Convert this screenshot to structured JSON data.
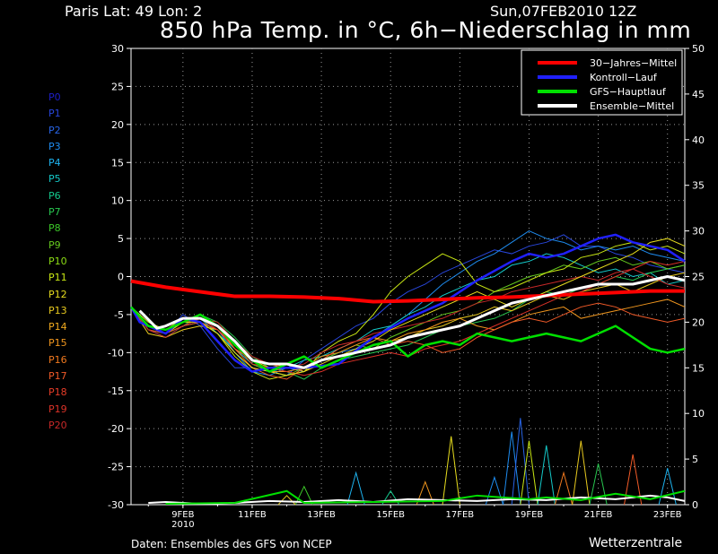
{
  "header": {
    "location": "Paris   Lat: 49  Lon: 2",
    "date": "Sun,07FEB2010 12Z",
    "title": "850 hPa Temp. in °C, 6h−Niederschlag in mm"
  },
  "footer": {
    "source": "Daten: Ensembles des GFS von NCEP",
    "brand": "Wetterzentrale"
  },
  "members": {
    "labels": [
      "P0",
      "P1",
      "P2",
      "P3",
      "P4",
      "P5",
      "P6",
      "P7",
      "P8",
      "P9",
      "P10",
      "P11",
      "P12",
      "P13",
      "P14",
      "P15",
      "P16",
      "P17",
      "P18",
      "P19",
      "P20"
    ],
    "colors": [
      "#1e1ec8",
      "#2846dc",
      "#2864e6",
      "#1e8cf0",
      "#1eb4f0",
      "#14c8c8",
      "#14c88c",
      "#28c850",
      "#3cc828",
      "#64c81e",
      "#8cdc14",
      "#c8e614",
      "#e6dc1e",
      "#e6c81e",
      "#f0aa1e",
      "#f0961e",
      "#f0781e",
      "#f05a28",
      "#e63c28",
      "#dc3228",
      "#c82828"
    ]
  },
  "chart_data": {
    "type": "line",
    "x_unit": "days since 07FEB2010 12Z",
    "x_range": [
      0,
      16
    ],
    "x_ticks": [
      {
        "x": 1.5,
        "label": "9FEB",
        "sub": "2010"
      },
      {
        "x": 3.5,
        "label": "11FEB"
      },
      {
        "x": 5.5,
        "label": "13FEB"
      },
      {
        "x": 7.5,
        "label": "15FEB"
      },
      {
        "x": 9.5,
        "label": "17FEB"
      },
      {
        "x": 11.5,
        "label": "19FEB"
      },
      {
        "x": 13.5,
        "label": "21FEB"
      },
      {
        "x": 15.5,
        "label": "23FEB"
      }
    ],
    "y_left": {
      "min": -30,
      "max": 30,
      "ticks": [
        -30,
        -25,
        -20,
        -15,
        -10,
        -5,
        0,
        5,
        10,
        15,
        20,
        25,
        30
      ],
      "unit": "°C"
    },
    "y_right": {
      "min": 0,
      "max": 50,
      "ticks": [
        0,
        5,
        10,
        15,
        20,
        25,
        30,
        35,
        40,
        45,
        50
      ],
      "unit": "mm"
    },
    "grid": true,
    "legend": {
      "position": "top-right",
      "entries": [
        {
          "label": "30−Jahres−Mittel",
          "color": "#ff0000"
        },
        {
          "label": "Kontroll−Lauf",
          "color": "#2020ff"
        },
        {
          "label": "GFS−Hauptlauf",
          "color": "#00e000"
        },
        {
          "label": "Ensemble−Mittel",
          "color": "#ffffff"
        }
      ]
    },
    "temperature_series": {
      "climate_mean": {
        "x": [
          0,
          1,
          2,
          3,
          4,
          5,
          6,
          7,
          8,
          9,
          10,
          11,
          12,
          13,
          14,
          15,
          16
        ],
        "y": [
          -0.6,
          -1.4,
          -2.0,
          -2.6,
          -2.6,
          -2.7,
          -2.9,
          -3.3,
          -3.2,
          -3.0,
          -2.8,
          -2.7,
          -2.5,
          -2.3,
          -2.1,
          -1.9,
          -1.9
        ]
      },
      "control_run": {
        "x": [
          0,
          0.25,
          1,
          1.5,
          2,
          2.5,
          3,
          3.5,
          4,
          5,
          6,
          7,
          8,
          9,
          9.5,
          10,
          11,
          11.5,
          12,
          12.5,
          13,
          13.5,
          14,
          14.5,
          15,
          15.5,
          16
        ],
        "y": [
          -4.0,
          -6.0,
          -7.5,
          -5.5,
          -6.0,
          -8.5,
          -11.0,
          -12.5,
          -12.0,
          -12.0,
          -11.5,
          -8.0,
          -5.5,
          -3.5,
          -2.0,
          -0.5,
          2.0,
          3.0,
          2.5,
          3.0,
          4.0,
          5.0,
          5.5,
          4.5,
          4.0,
          3.5,
          2.0
        ]
      },
      "main_run": {
        "x": [
          0,
          0.5,
          1,
          1.5,
          2,
          2.5,
          3,
          3.5,
          4,
          4.5,
          5,
          5.5,
          6,
          7,
          7.5,
          8,
          8.5,
          9,
          9.5,
          10,
          10.5,
          11,
          11.5,
          12,
          12.5,
          13,
          13.5,
          14,
          14.5,
          15,
          15.5,
          16
        ],
        "y": [
          -4.0,
          -6.5,
          -7.0,
          -6.0,
          -5.0,
          -6.5,
          -9.0,
          -11.0,
          -12.5,
          -11.5,
          -10.5,
          -12.0,
          -11.0,
          -9.0,
          -8.5,
          -10.5,
          -9.0,
          -8.5,
          -9.0,
          -7.5,
          -8.0,
          -8.5,
          -8.0,
          -7.5,
          -8.0,
          -8.5,
          -7.5,
          -6.5,
          -8.0,
          -9.5,
          -10.0,
          -9.5
        ]
      },
      "ensemble_mean": {
        "x": [
          0.25,
          0.75,
          1,
          1.5,
          2,
          2.5,
          3,
          3.5,
          4,
          4.5,
          5,
          5.5,
          6,
          6.5,
          7,
          7.5,
          8,
          8.5,
          9,
          9.5,
          10,
          10.5,
          11,
          11.5,
          12,
          12.5,
          13,
          13.5,
          14,
          14.5,
          15,
          15.5,
          16
        ],
        "y": [
          -4.5,
          -6.8,
          -6.5,
          -5.5,
          -5.5,
          -6.5,
          -8.5,
          -11.0,
          -11.5,
          -11.5,
          -12.0,
          -11.0,
          -10.5,
          -10.0,
          -9.5,
          -9.0,
          -8.0,
          -7.5,
          -7.0,
          -6.5,
          -5.5,
          -4.5,
          -3.5,
          -3.0,
          -2.5,
          -2.0,
          -1.5,
          -1.0,
          -1.0,
          -1.0,
          -0.5,
          0.0,
          -0.5
        ]
      },
      "members": [
        {
          "name": "P1",
          "y": [
            -4.0,
            -6.0,
            -7.5,
            -5.0,
            -6.5,
            -9.5,
            -12.0,
            -12.0,
            -12.5,
            -13.0,
            -11.0,
            -9.5,
            -8.0,
            -6.5,
            -5.5,
            -3.5,
            -2.0,
            -1.0,
            0.5,
            1.5,
            2.5,
            3.5,
            3.0,
            4.0,
            4.5,
            5.5,
            4.0,
            4.0,
            3.0,
            2.5,
            1.5,
            1.0,
            0.5
          ]
        },
        {
          "name": "P3",
          "y": [
            -4.0,
            -7.0,
            -8.0,
            -6.5,
            -6.0,
            -7.0,
            -10.0,
            -12.5,
            -13.0,
            -12.0,
            -12.5,
            -11.0,
            -10.0,
            -9.5,
            -8.0,
            -6.5,
            -5.0,
            -3.0,
            -1.0,
            0.5,
            2.0,
            3.0,
            4.5,
            6.0,
            5.0,
            4.5,
            3.5,
            4.0,
            3.5,
            4.0,
            3.0,
            2.5,
            2.0
          ]
        },
        {
          "name": "P5",
          "y": [
            -4.0,
            -6.5,
            -7.0,
            -6.0,
            -5.5,
            -7.5,
            -9.5,
            -11.5,
            -12.5,
            -12.0,
            -11.0,
            -10.5,
            -9.5,
            -8.5,
            -7.0,
            -6.5,
            -5.0,
            -4.0,
            -2.5,
            -1.5,
            -0.5,
            0.0,
            1.5,
            2.0,
            3.0,
            2.5,
            1.5,
            0.5,
            1.0,
            0.0,
            0.5,
            -1.0,
            -0.5
          ]
        },
        {
          "name": "P7",
          "y": [
            -4.0,
            -7.0,
            -7.5,
            -6.5,
            -5.0,
            -6.0,
            -8.0,
            -10.5,
            -12.0,
            -12.5,
            -13.5,
            -12.0,
            -11.0,
            -10.5,
            -10.0,
            -9.5,
            -9.0,
            -8.0,
            -7.0,
            -6.5,
            -6.0,
            -5.5,
            -4.5,
            -3.0,
            -2.0,
            -2.5,
            -1.5,
            -1.0,
            0.0,
            -0.5,
            0.5,
            1.0,
            1.5
          ]
        },
        {
          "name": "P9",
          "y": [
            -4.0,
            -6.5,
            -7.5,
            -6.0,
            -5.5,
            -6.5,
            -9.0,
            -11.5,
            -12.5,
            -13.0,
            -12.0,
            -11.0,
            -10.0,
            -9.0,
            -9.5,
            -8.0,
            -7.0,
            -6.0,
            -5.0,
            -4.5,
            -3.5,
            -2.0,
            -1.0,
            0.0,
            0.5,
            1.5,
            1.0,
            2.0,
            2.5,
            1.5,
            2.0,
            1.0,
            1.5
          ]
        },
        {
          "name": "P11",
          "y": [
            -4.0,
            -6.0,
            -7.0,
            -5.5,
            -6.0,
            -7.5,
            -10.5,
            -12.5,
            -13.5,
            -13.0,
            -12.5,
            -10.0,
            -8.5,
            -7.5,
            -5.0,
            -2.0,
            0.0,
            1.5,
            3.0,
            2.0,
            -1.0,
            -2.0,
            -1.5,
            -0.5,
            0.5,
            1.0,
            2.5,
            3.0,
            4.0,
            4.5,
            3.5,
            4.0,
            3.0
          ]
        },
        {
          "name": "P13",
          "y": [
            -4.0,
            -7.5,
            -8.0,
            -7.0,
            -6.5,
            -7.0,
            -9.0,
            -11.0,
            -12.0,
            -11.5,
            -12.5,
            -11.5,
            -10.5,
            -10.0,
            -9.0,
            -8.5,
            -8.0,
            -7.0,
            -6.5,
            -5.5,
            -5.0,
            -4.0,
            -4.5,
            -3.5,
            -2.5,
            -3.0,
            -2.0,
            -1.5,
            -1.0,
            -2.0,
            -1.0,
            0.0,
            0.5
          ]
        },
        {
          "name": "P15",
          "y": [
            -4.0,
            -6.5,
            -7.5,
            -6.0,
            -5.0,
            -6.5,
            -9.5,
            -11.0,
            -12.5,
            -12.5,
            -12.0,
            -10.5,
            -10.0,
            -9.0,
            -8.0,
            -8.5,
            -7.5,
            -7.0,
            -6.0,
            -5.5,
            -6.5,
            -7.0,
            -6.0,
            -5.0,
            -4.5,
            -4.0,
            -5.5,
            -5.0,
            -4.5,
            -4.0,
            -3.5,
            -3.0,
            -4.0
          ]
        },
        {
          "name": "P17",
          "y": [
            -4.0,
            -7.0,
            -7.5,
            -6.5,
            -6.0,
            -7.0,
            -9.5,
            -12.0,
            -13.0,
            -13.5,
            -12.0,
            -11.0,
            -9.5,
            -8.5,
            -8.0,
            -9.0,
            -8.5,
            -9.0,
            -10.0,
            -9.5,
            -8.0,
            -7.0,
            -6.0,
            -5.5,
            -6.0,
            -5.0,
            -4.0,
            -3.5,
            -4.0,
            -5.0,
            -5.5,
            -6.0,
            -5.5
          ]
        },
        {
          "name": "P19",
          "y": [
            -4.0,
            -6.5,
            -7.0,
            -6.0,
            -5.5,
            -7.0,
            -9.0,
            -11.5,
            -12.0,
            -12.5,
            -13.0,
            -12.5,
            -11.5,
            -11.0,
            -10.5,
            -10.0,
            -10.5,
            -9.5,
            -9.0,
            -8.5,
            -7.5,
            -6.5,
            -5.5,
            -4.5,
            -3.5,
            -2.5,
            -2.0,
            -1.0,
            0.0,
            1.0,
            2.0,
            1.5,
            2.0
          ]
        },
        {
          "name": "P20",
          "y": [
            -4.0,
            -7.0,
            -8.0,
            -6.5,
            -5.5,
            -6.0,
            -8.5,
            -10.5,
            -11.5,
            -12.0,
            -11.5,
            -10.0,
            -9.0,
            -8.5,
            -7.5,
            -7.0,
            -6.5,
            -6.0,
            -5.5,
            -4.5,
            -3.5,
            -3.0,
            -2.0,
            -1.5,
            -1.0,
            -0.5,
            0.0,
            -0.5,
            0.5,
            1.0,
            0.0,
            -1.0,
            -1.5
          ]
        },
        {
          "name": "P12",
          "y": [
            -4.0,
            -6.5,
            -7.5,
            -6.0,
            -6.0,
            -7.5,
            -10.0,
            -12.0,
            -12.5,
            -13.0,
            -12.5,
            -11.0,
            -10.5,
            -9.5,
            -8.5,
            -7.0,
            -6.0,
            -5.0,
            -4.0,
            -3.0,
            -2.0,
            -3.0,
            -4.0,
            -3.0,
            -2.0,
            -1.0,
            0.0,
            1.0,
            2.0,
            3.0,
            4.5,
            5.0,
            4.0
          ]
        }
      ]
    },
    "precip_series": {
      "x": [
        8.5,
        9.0,
        9.25,
        9.5,
        10.5,
        11.0,
        11.25,
        11.5,
        12.0,
        12.5,
        13.0,
        13.5,
        14.0,
        14.5,
        15.0,
        15.5
      ],
      "peaks": [
        {
          "x": 9.25,
          "mm": 7.5,
          "color": "#e6dc1e"
        },
        {
          "x": 11.0,
          "mm": 8.0,
          "color": "#1e8cf0"
        },
        {
          "x": 11.25,
          "mm": 9.5,
          "color": "#2864e6"
        },
        {
          "x": 11.5,
          "mm": 7.0,
          "color": "#c8e614"
        },
        {
          "x": 12.0,
          "mm": 6.5,
          "color": "#14c8c8"
        },
        {
          "x": 12.5,
          "mm": 3.5,
          "color": "#f0781e"
        },
        {
          "x": 13.0,
          "mm": 7.0,
          "color": "#e6c81e"
        },
        {
          "x": 13.5,
          "mm": 4.5,
          "color": "#28c850"
        },
        {
          "x": 14.5,
          "mm": 5.5,
          "color": "#f05a28"
        },
        {
          "x": 15.5,
          "mm": 4.0,
          "color": "#1eb4f0"
        },
        {
          "x": 10.5,
          "mm": 3.0,
          "color": "#1e8cf0"
        },
        {
          "x": 8.5,
          "mm": 2.5,
          "color": "#f0961e"
        },
        {
          "x": 6.5,
          "mm": 3.5,
          "color": "#1eb4f0"
        },
        {
          "x": 5.0,
          "mm": 2.0,
          "color": "#3cc828"
        },
        {
          "x": 4.5,
          "mm": 1.0,
          "color": "#e6c81e"
        },
        {
          "x": 7.5,
          "mm": 1.5,
          "color": "#14c88c"
        }
      ]
    }
  }
}
